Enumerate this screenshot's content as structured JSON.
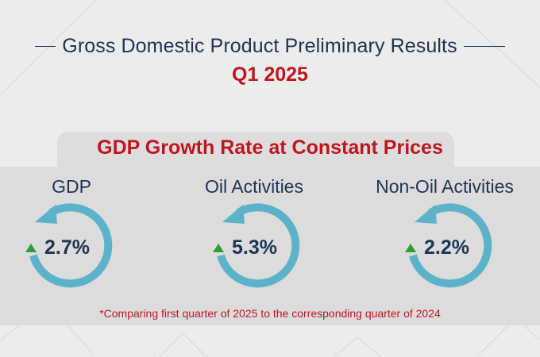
{
  "header": {
    "title": "Gross Domestic Product Preliminary Results",
    "period": "Q1 2025"
  },
  "section": {
    "title": "GDP Growth Rate at Constant Prices"
  },
  "indicators": [
    {
      "label": "GDP",
      "value": "2.7%",
      "direction": "up"
    },
    {
      "label": "Oil Activities",
      "value": "5.3%",
      "direction": "up"
    },
    {
      "label": "Non-Oil Activities",
      "value": "2.2%",
      "direction": "up"
    }
  ],
  "footnote": "*Comparing first quarter of 2025 to the corresponding quarter of 2024",
  "colors": {
    "navy": "#1f3352",
    "red": "#c0141f",
    "ring": "#5cb3c9",
    "up_arrow": "#2e9e3b"
  }
}
